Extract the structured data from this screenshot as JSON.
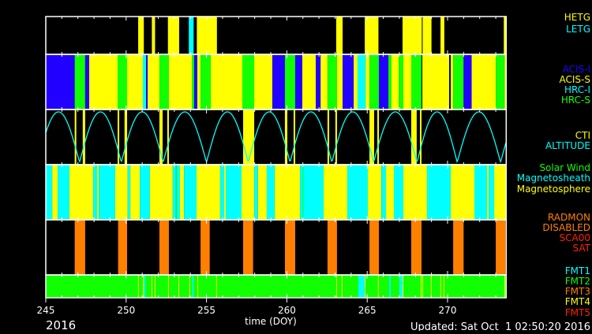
{
  "chart_data": {
    "type": "timeline",
    "xlabel": "time (DOY)",
    "year_label": "2016",
    "updated": "Updated: Sat Oct  1 02:50:20 2016",
    "xlim": [
      245,
      273.65
    ],
    "xticks": [
      245,
      250,
      255,
      260,
      265,
      270
    ],
    "colors": {
      "yellow": "#ffff00",
      "cyan": "#00ffff",
      "blue": "#2200ff",
      "green": "#11ff00",
      "orange": "#ff7f00",
      "red": "#ff2200",
      "background": "#000000",
      "frame": "#ffffff"
    },
    "panels": [
      {
        "id": "grating",
        "legend": [
          {
            "label": "HETG",
            "color": "yellow"
          },
          {
            "label": "LETG",
            "color": "cyan"
          }
        ],
        "segments": [
          [
            250.75,
            251.1,
            "yellow"
          ],
          [
            251.6,
            251.8,
            "yellow"
          ],
          [
            252.6,
            253.3,
            "yellow"
          ],
          [
            253.9,
            254.2,
            "cyan"
          ],
          [
            254.4,
            255.65,
            "yellow"
          ],
          [
            263.07,
            263.47,
            "yellow"
          ],
          [
            264.85,
            265.7,
            "yellow"
          ],
          [
            267.2,
            268.4,
            "yellow"
          ],
          [
            268.45,
            269.0,
            "yellow"
          ],
          [
            269.56,
            269.8,
            "yellow"
          ],
          [
            273.5,
            273.65,
            "yellow"
          ]
        ]
      },
      {
        "id": "instrument",
        "legend": [
          {
            "label": "ACIS-I",
            "color": "blue"
          },
          {
            "label": "ACIS-S",
            "color": "yellow"
          },
          {
            "label": "HRC-I",
            "color": "cyan"
          },
          {
            "label": "HRC-S",
            "color": "green"
          }
        ],
        "segments": [
          [
            245,
            246.8,
            "blue"
          ],
          [
            246.8,
            247.45,
            "green"
          ],
          [
            247.45,
            247.7,
            "blue"
          ],
          [
            247.7,
            249.47,
            "yellow"
          ],
          [
            249.47,
            250.06,
            "green"
          ],
          [
            250.06,
            251.04,
            "yellow"
          ],
          [
            251.04,
            251.24,
            "cyan"
          ],
          [
            251.24,
            251.34,
            "blue"
          ],
          [
            251.34,
            252.07,
            "yellow"
          ],
          [
            252.07,
            252.66,
            "green"
          ],
          [
            252.66,
            254.09,
            "yellow"
          ],
          [
            254.09,
            254.23,
            "green"
          ],
          [
            254.23,
            254.43,
            "blue"
          ],
          [
            254.43,
            254.63,
            "yellow"
          ],
          [
            254.63,
            255.27,
            "green"
          ],
          [
            255.27,
            257.23,
            "yellow"
          ],
          [
            257.23,
            257.97,
            "green"
          ],
          [
            257.97,
            259.1,
            "yellow"
          ],
          [
            259.1,
            259.88,
            "blue"
          ],
          [
            259.88,
            260.52,
            "green"
          ],
          [
            260.52,
            260.96,
            "blue"
          ],
          [
            260.96,
            261.8,
            "yellow"
          ],
          [
            261.8,
            262.1,
            "blue"
          ],
          [
            262.1,
            262.53,
            "yellow"
          ],
          [
            262.53,
            263.12,
            "green"
          ],
          [
            263.12,
            263.47,
            "yellow"
          ],
          [
            263.47,
            264.16,
            "blue"
          ],
          [
            264.16,
            264.4,
            "yellow"
          ],
          [
            264.4,
            264.9,
            "cyan"
          ],
          [
            264.9,
            265.14,
            "yellow"
          ],
          [
            265.14,
            265.73,
            "green"
          ],
          [
            265.73,
            266.32,
            "blue"
          ],
          [
            266.32,
            266.51,
            "green"
          ],
          [
            266.51,
            266.96,
            "yellow"
          ],
          [
            266.96,
            267.25,
            "green"
          ],
          [
            267.25,
            267.74,
            "yellow"
          ],
          [
            267.74,
            268.38,
            "green"
          ],
          [
            268.43,
            270.1,
            "yellow"
          ],
          [
            270.2,
            270.35,
            "yellow"
          ],
          [
            270.35,
            271.0,
            "green"
          ],
          [
            271.0,
            271.5,
            "blue"
          ],
          [
            271.5,
            273.0,
            "yellow"
          ],
          [
            273.0,
            273.55,
            "green"
          ],
          [
            273.55,
            273.65,
            "yellow"
          ]
        ]
      },
      {
        "id": "cti-altitude",
        "legend": [
          {
            "label": "CTI",
            "color": "yellow"
          },
          {
            "label": "ALTITUDE",
            "color": "cyan"
          }
        ],
        "segments": [
          [
            246.8,
            246.9,
            "yellow"
          ],
          [
            247.3,
            247.45,
            "yellow"
          ],
          [
            249.47,
            249.57,
            "yellow"
          ],
          [
            249.9,
            250.06,
            "yellow"
          ],
          [
            252.07,
            252.27,
            "yellow"
          ],
          [
            252.56,
            252.66,
            "yellow"
          ],
          [
            257.28,
            257.97,
            "yellow"
          ],
          [
            259.88,
            260.03,
            "yellow"
          ],
          [
            260.42,
            260.52,
            "yellow"
          ],
          [
            262.53,
            262.63,
            "yellow"
          ],
          [
            263.02,
            263.12,
            "yellow"
          ],
          [
            265.14,
            265.43,
            "yellow"
          ],
          [
            265.63,
            265.73,
            "yellow"
          ],
          [
            267.74,
            268.08,
            "yellow"
          ],
          [
            268.28,
            268.38,
            "yellow"
          ]
        ],
        "altitude_minima_doy": [
          247.1,
          249.7,
          252.3,
          255.0,
          257.6,
          260.2,
          262.8,
          265.4,
          268.1,
          270.6,
          273.3
        ]
      },
      {
        "id": "radiation-zone",
        "legend": [
          {
            "label": "Solar Wind",
            "color": "green"
          },
          {
            "label": "Magnetosheath",
            "color": "cyan"
          },
          {
            "label": "Magnetosphere",
            "color": "yellow"
          }
        ],
        "segments": [
          [
            245,
            245.4,
            "cyan"
          ],
          [
            245.4,
            245.74,
            "yellow"
          ],
          [
            245.74,
            246.47,
            "cyan"
          ],
          [
            246.47,
            247.95,
            "yellow"
          ],
          [
            247.95,
            248.2,
            "cyan"
          ],
          [
            248.2,
            248.3,
            "yellow"
          ],
          [
            248.3,
            249.32,
            "cyan"
          ],
          [
            249.32,
            250.1,
            "yellow"
          ],
          [
            250.1,
            250.26,
            "cyan"
          ],
          [
            250.26,
            250.85,
            "yellow"
          ],
          [
            250.85,
            251.48,
            "cyan"
          ],
          [
            251.48,
            252.9,
            "yellow"
          ],
          [
            252.9,
            253.1,
            "cyan"
          ],
          [
            253.1,
            253.15,
            "green"
          ],
          [
            253.15,
            253.35,
            "cyan"
          ],
          [
            253.35,
            253.6,
            "yellow"
          ],
          [
            253.6,
            254.38,
            "cyan"
          ],
          [
            254.38,
            255.85,
            "yellow"
          ],
          [
            255.85,
            256.1,
            "cyan"
          ],
          [
            256.1,
            256.2,
            "yellow"
          ],
          [
            256.2,
            257.18,
            "cyan"
          ],
          [
            257.18,
            257.97,
            "yellow"
          ],
          [
            257.97,
            258.2,
            "cyan"
          ],
          [
            258.2,
            258.75,
            "yellow"
          ],
          [
            258.75,
            259.25,
            "cyan"
          ],
          [
            259.25,
            260.82,
            "yellow"
          ],
          [
            260.82,
            262.29,
            "cyan"
          ],
          [
            260.98,
            261.03,
            "green"
          ],
          [
            262.29,
            263.76,
            "yellow"
          ],
          [
            263.76,
            265.04,
            "cyan"
          ],
          [
            265.04,
            265.88,
            "yellow"
          ],
          [
            265.88,
            266.17,
            "cyan"
          ],
          [
            266.17,
            266.66,
            "yellow"
          ],
          [
            266.66,
            267.25,
            "cyan"
          ],
          [
            267.25,
            268.72,
            "yellow"
          ],
          [
            268.72,
            270.2,
            "cyan"
          ],
          [
            270.2,
            271.67,
            "yellow"
          ],
          [
            271.67,
            272.46,
            "cyan"
          ],
          [
            272.46,
            272.56,
            "yellow"
          ],
          [
            272.56,
            272.9,
            "cyan"
          ],
          [
            272.9,
            273.65,
            "yellow"
          ]
        ]
      },
      {
        "id": "radmon",
        "legend": [
          {
            "label": "RADMON",
            "color": "orange"
          },
          {
            "label": "DISABLED",
            "color": "orange"
          },
          {
            "label": "SCA00",
            "color": "red"
          },
          {
            "label": "SAT",
            "color": "red"
          }
        ],
        "segments": [
          [
            246.8,
            247.45,
            "orange"
          ],
          [
            249.5,
            250.06,
            "orange"
          ],
          [
            252.07,
            252.66,
            "orange"
          ],
          [
            254.63,
            255.2,
            "orange"
          ],
          [
            257.28,
            257.9,
            "orange"
          ],
          [
            259.88,
            260.52,
            "orange"
          ],
          [
            262.53,
            263.12,
            "orange"
          ],
          [
            265.14,
            265.73,
            "orange"
          ],
          [
            267.74,
            268.38,
            "orange"
          ],
          [
            270.35,
            271.0,
            "orange"
          ],
          [
            273.0,
            273.6,
            "orange"
          ]
        ]
      },
      {
        "id": "telemetry-format",
        "legend": [
          {
            "label": "FMT1",
            "color": "cyan"
          },
          {
            "label": "FMT2",
            "color": "green"
          },
          {
            "label": "FMT3",
            "color": "orange"
          },
          {
            "label": "FMT4",
            "color": "yellow"
          },
          {
            "label": "FMT5",
            "color": "red"
          }
        ],
        "segments": [
          [
            245,
            273.65,
            "green"
          ],
          [
            250.74,
            250.78,
            "yellow"
          ],
          [
            251.04,
            251.08,
            "yellow"
          ],
          [
            251.1,
            251.2,
            "cyan"
          ],
          [
            251.58,
            251.62,
            "yellow"
          ],
          [
            251.78,
            251.82,
            "yellow"
          ],
          [
            252.61,
            252.65,
            "yellow"
          ],
          [
            253.25,
            253.29,
            "yellow"
          ],
          [
            253.93,
            253.97,
            "yellow"
          ],
          [
            254.1,
            254.2,
            "cyan"
          ],
          [
            254.43,
            254.47,
            "yellow"
          ],
          [
            255.6,
            255.64,
            "yellow"
          ],
          [
            263.07,
            263.11,
            "yellow"
          ],
          [
            263.41,
            263.45,
            "yellow"
          ],
          [
            264.45,
            264.85,
            "cyan"
          ],
          [
            264.85,
            264.89,
            "yellow"
          ],
          [
            265.67,
            265.71,
            "yellow"
          ],
          [
            266.37,
            266.47,
            "cyan"
          ],
          [
            267.0,
            267.2,
            "cyan"
          ],
          [
            267.2,
            267.24,
            "yellow"
          ],
          [
            268.33,
            268.37,
            "yellow"
          ],
          [
            268.43,
            268.47,
            "yellow"
          ],
          [
            268.96,
            269.0,
            "yellow"
          ],
          [
            269.55,
            269.59,
            "yellow"
          ],
          [
            269.75,
            269.79,
            "yellow"
          ],
          [
            273.53,
            273.57,
            "yellow"
          ]
        ]
      }
    ]
  }
}
